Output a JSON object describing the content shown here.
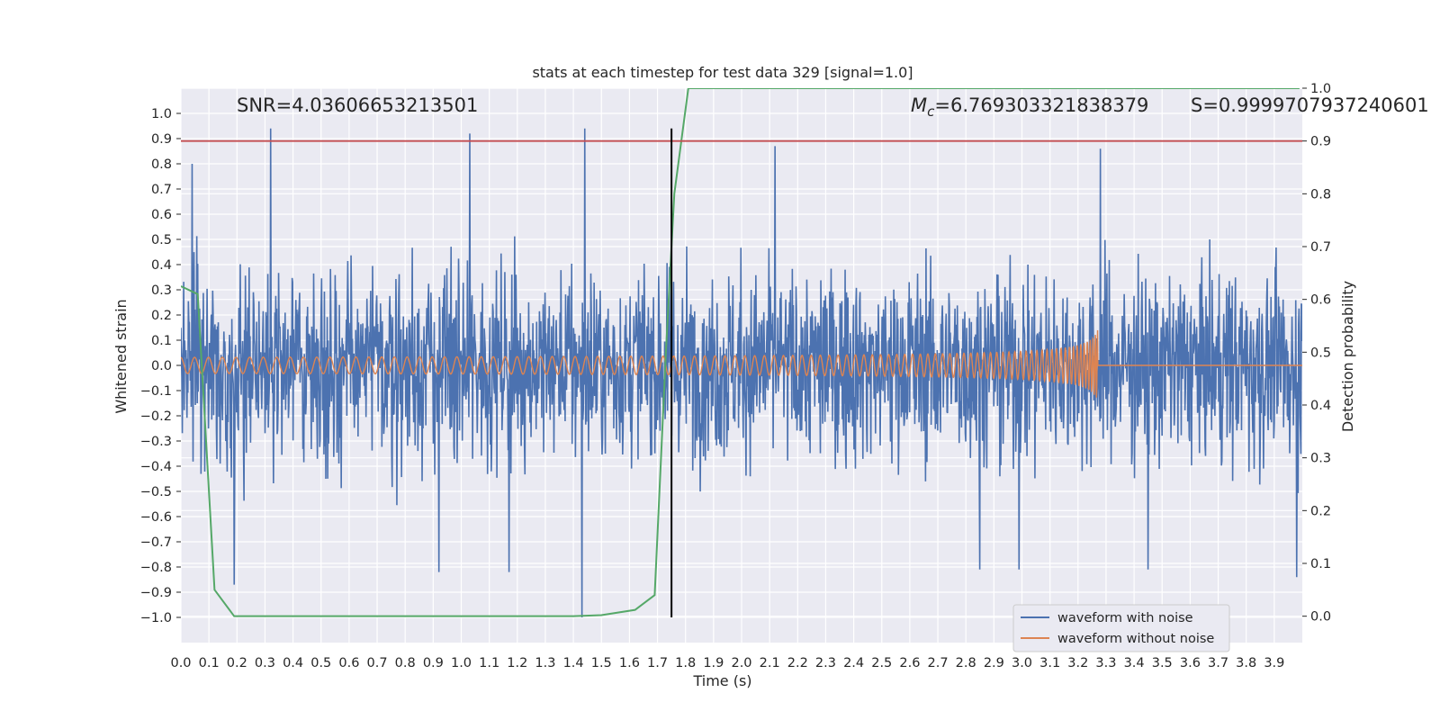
{
  "chart_data": {
    "type": "line",
    "title": "stats at each timestep for test data 329 [signal=1.0]",
    "xlabel": "Time (s)",
    "ylabel": "Whitened strain",
    "y2label": "Detection probability",
    "xlim": [
      0.0,
      4.0
    ],
    "ylim": [
      -1.1,
      1.1
    ],
    "y2lim": [
      -0.05,
      1.0
    ],
    "xticks": [
      0.0,
      0.1,
      0.2,
      0.3,
      0.4,
      0.5,
      0.6,
      0.7,
      0.8,
      0.9,
      1.0,
      1.1,
      1.2,
      1.3,
      1.4,
      1.5,
      1.6,
      1.7,
      1.8,
      1.9,
      2.0,
      2.1,
      2.2,
      2.3,
      2.4,
      2.5,
      2.6,
      2.7,
      2.8,
      2.9,
      3.0,
      3.1,
      3.2,
      3.3,
      3.4,
      3.5,
      3.6,
      3.7,
      3.8,
      3.9
    ],
    "yticks": [
      1.0,
      0.9,
      0.8,
      0.7,
      0.6,
      0.5,
      0.4,
      0.3,
      0.2,
      0.1,
      0.0,
      -0.1,
      -0.2,
      -0.3,
      -0.4,
      -0.5,
      -0.6,
      -0.7,
      -0.8,
      -0.9,
      -1.0
    ],
    "y2ticks": [
      1.0,
      0.9,
      0.8,
      0.7,
      0.6,
      0.5,
      0.4,
      0.3,
      0.2,
      0.1,
      0.0
    ],
    "grid": true,
    "legend_position": "lower-right",
    "annotations": {
      "snr": "SNR=4.03606653213501",
      "mc_symbol": "M",
      "mc_sub": "c",
      "mc_value": "=6.769303321838379",
      "s": "S=0.9999707937240601"
    },
    "series": [
      {
        "name": "waveform with noise",
        "color": "#4c72b0",
        "axis": "left",
        "description": "dense noisy whitened strain, roughly within -1.0 to 0.94, peaks near 0.94 at t≈0.32 and t≈1.44, min -1.0 at t≈1.43"
      },
      {
        "name": "waveform without noise",
        "color": "#dd8452",
        "axis": "left",
        "chirp": {
          "start": 0.0,
          "merger": 3.27,
          "amp_start": 0.02,
          "amp_peak": 0.14,
          "f_start": 20
        }
      },
      {
        "name": "",
        "color": "#55a868",
        "axis": "right",
        "x": [
          0.0,
          0.06,
          0.12,
          0.19,
          0.5,
          1.0,
          1.4,
          1.5,
          1.62,
          1.69,
          1.73,
          1.76,
          1.81,
          2.0,
          3.0,
          3.99
        ],
        "y": [
          0.625,
          0.61,
          0.05,
          0.0,
          0.0,
          0.0,
          0.0,
          0.002,
          0.012,
          0.04,
          0.5,
          0.8,
          1.0,
          1.0,
          1.0,
          1.0
        ]
      }
    ],
    "reference_lines": [
      {
        "orientation": "horizontal",
        "axis": "right",
        "value": 0.9,
        "color": "#c44e52"
      },
      {
        "orientation": "vertical",
        "value": 1.75,
        "color": "#000000"
      }
    ]
  }
}
